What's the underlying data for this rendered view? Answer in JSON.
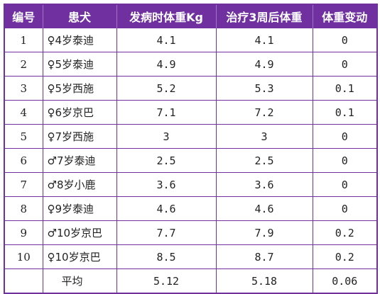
{
  "table": {
    "headers": [
      "编号",
      "患犬",
      "发病时体重Kg",
      "治疗3周后体重",
      "体重变动"
    ],
    "rows": [
      {
        "id": "1",
        "dog": "♀4岁泰迪",
        "before": "4.1",
        "after": "4.1",
        "change": "0"
      },
      {
        "id": "2",
        "dog": "♀5岁泰迪",
        "before": "4.9",
        "after": "4.9",
        "change": "0"
      },
      {
        "id": "3",
        "dog": "♀5岁西施",
        "before": "5.2",
        "after": "5.3",
        "change": "0.1"
      },
      {
        "id": "4",
        "dog": "♀6岁京巴",
        "before": "7.1",
        "after": "7.2",
        "change": "0.1"
      },
      {
        "id": "5",
        "dog": "♀7岁西施",
        "before": "3",
        "after": "3",
        "change": "0"
      },
      {
        "id": "6",
        "dog": "♂7岁泰迪",
        "before": "2.5",
        "after": "2.5",
        "change": "0"
      },
      {
        "id": "7",
        "dog": "♂8岁小鹿",
        "before": "3.6",
        "after": "3.6",
        "change": "0"
      },
      {
        "id": "8",
        "dog": "♀9岁泰迪",
        "before": "4.6",
        "after": "4.6",
        "change": "0"
      },
      {
        "id": "9",
        "dog": "♂10岁京巴",
        "before": "7.7",
        "after": "7.9",
        "change": "0.2"
      },
      {
        "id": "10",
        "dog": "♀10岁京巴",
        "before": "8.5",
        "after": "8.7",
        "change": "0.2"
      }
    ],
    "average": {
      "id": "",
      "label": "平均",
      "before": "5.12",
      "after": "5.18",
      "change": "0.06"
    }
  }
}
